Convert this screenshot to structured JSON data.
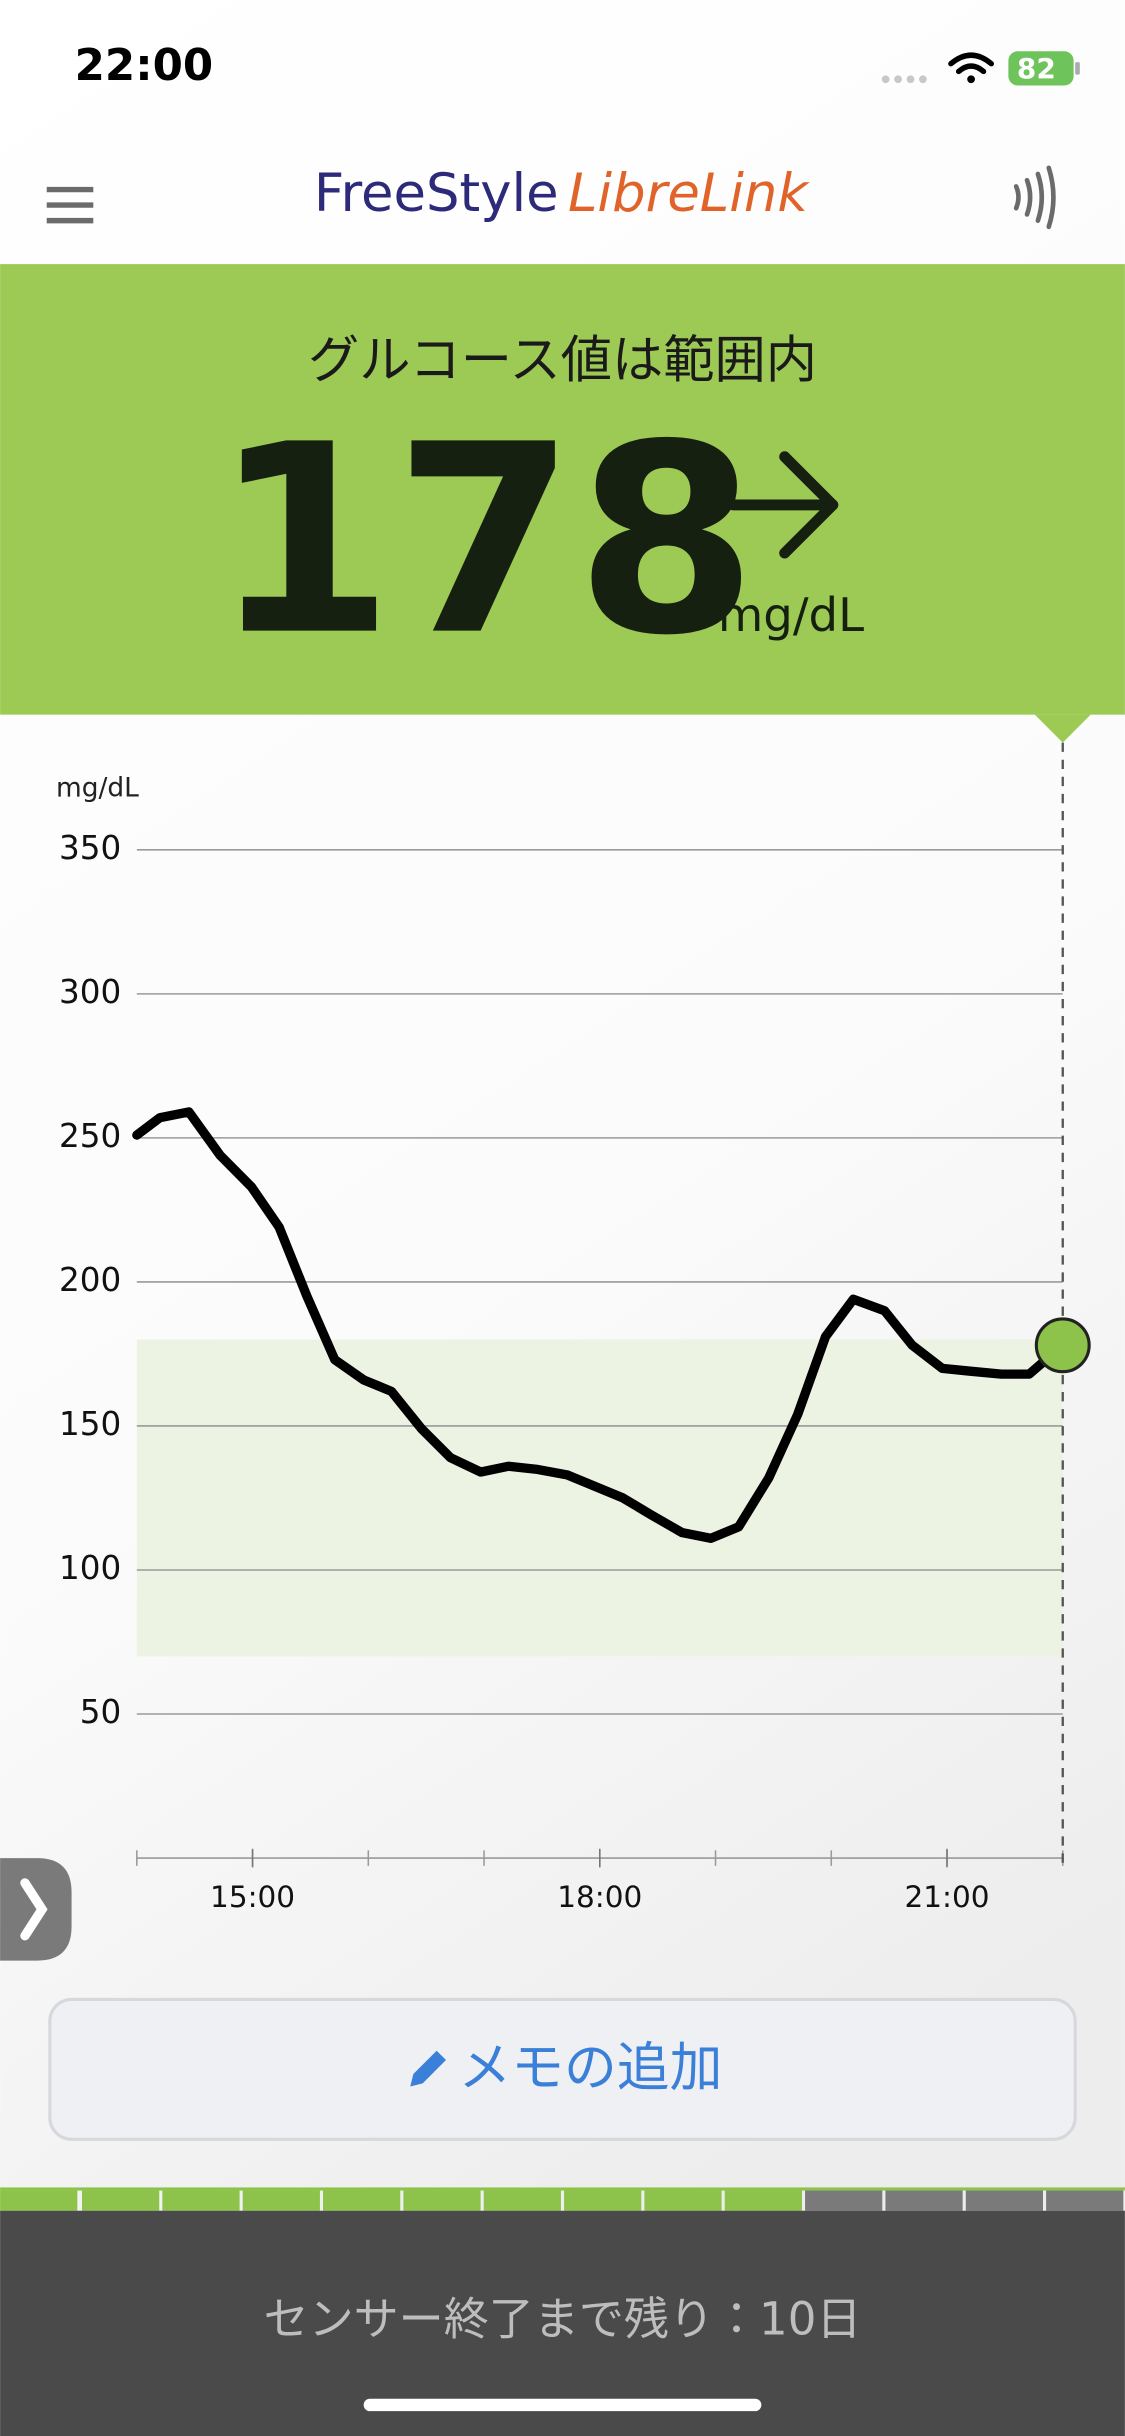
{
  "status_bar": {
    "time": "22:00",
    "battery": "82"
  },
  "header": {
    "brand_main": "FreeStyle",
    "brand_accent": "LibreLink"
  },
  "glucose": {
    "status": "グルコース値は範囲内",
    "value": 178,
    "unit": "mg/dL"
  },
  "chart": {
    "type": "line",
    "y_label": "mg/dL",
    "color": "#000000",
    "x": [
      14.0,
      14.2,
      14.45,
      14.72,
      14.99,
      15.23,
      15.47,
      15.71,
      15.96,
      16.2,
      16.46,
      16.71,
      16.97,
      17.21,
      17.45,
      17.72,
      17.96,
      18.2,
      18.45,
      18.71,
      18.96,
      19.2,
      19.46,
      19.71,
      19.95,
      20.19,
      20.46,
      20.7,
      20.96,
      21.2,
      21.47,
      21.71,
      22.0
    ],
    "values": [
      251,
      257,
      259,
      244,
      233,
      219,
      195,
      173,
      166,
      162,
      149,
      139,
      134,
      136,
      135,
      133,
      129,
      125,
      119,
      113,
      111,
      115,
      132,
      154,
      181,
      194,
      190,
      178,
      170,
      169,
      168,
      168,
      178
    ],
    "xlim": [
      14,
      22
    ],
    "xticks": [
      {
        "value": 15,
        "label": "15:00"
      },
      {
        "value": 18,
        "label": "18:00"
      },
      {
        "value": 21,
        "label": "21:00"
      }
    ],
    "ylim": [
      0,
      350
    ],
    "yticks": [
      50,
      100,
      150,
      200,
      250,
      300,
      350
    ],
    "grid": true,
    "target_range": [
      70,
      180
    ],
    "target_color": "#ecf3e3",
    "marker_color": "#8dc34a"
  },
  "memo_button": "メモの追加",
  "sensor": {
    "text": "センサー終了まで残り：10日"
  }
}
